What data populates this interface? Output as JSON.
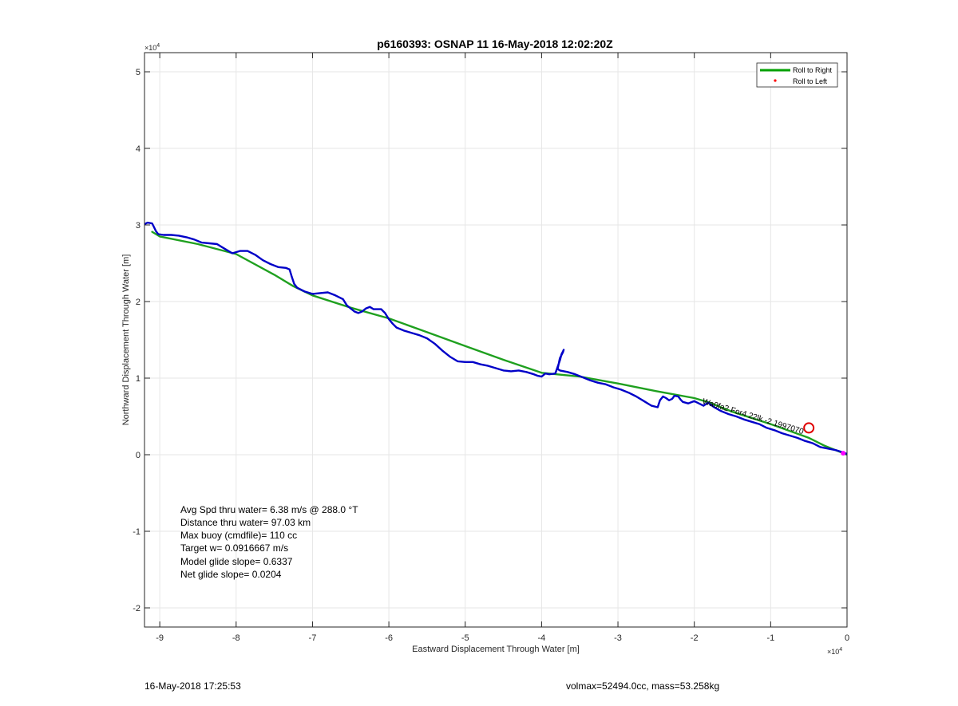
{
  "chart_data": {
    "type": "line",
    "title": "p6160393: OSNAP 11 16-May-2018 12:02:20Z",
    "xlabel": "Eastward Displacement Through Water [m]",
    "ylabel": "Northward Displacement Through Water [m]",
    "xlim": [
      -92000,
      0
    ],
    "ylim": [
      -22500,
      52500
    ],
    "x_ticks": [
      -90000,
      -80000,
      -70000,
      -60000,
      -50000,
      -40000,
      -30000,
      -20000,
      -10000,
      0
    ],
    "x_tick_labels": [
      "-9",
      "-8",
      "-7",
      "-6",
      "-5",
      "-4",
      "-3",
      "-2",
      "-1",
      "0"
    ],
    "y_ticks": [
      -20000,
      -10000,
      0,
      10000,
      20000,
      30000,
      40000,
      50000
    ],
    "y_tick_labels": [
      "-2",
      "-1",
      "0",
      "1",
      "2",
      "3",
      "4",
      "5"
    ],
    "axis_multiplier": {
      "base": "×10",
      "exp": "4"
    },
    "grid": true,
    "legend_position": "top-right",
    "legend": [
      {
        "name": "Roll to Right",
        "color": "#00a000",
        "marker": "line"
      },
      {
        "name": "Roll to Left",
        "color": "#ff0000",
        "marker": "dot"
      }
    ],
    "series": [
      {
        "name": "Roll to Right",
        "color": "#1fa01f",
        "x": [
          -91000,
          -90000,
          -85000,
          -80000,
          -75000,
          -72500,
          -70000,
          -65000,
          -60000,
          -55000,
          -50000,
          -45000,
          -40000,
          -35000,
          -30000,
          -25000,
          -20000,
          -18000,
          -15000,
          -10000,
          -5000,
          -3000,
          0
        ],
        "y": [
          29100,
          28500,
          27500,
          26200,
          23500,
          22000,
          20800,
          19200,
          17800,
          16000,
          14200,
          12400,
          10700,
          10200,
          9300,
          8300,
          7400,
          6800,
          5600,
          4000,
          2200,
          1200,
          0
        ]
      },
      {
        "name": "track",
        "color": "#0000c8",
        "x": [
          -92000,
          -91600,
          -91000,
          -90800,
          -90500,
          -90200,
          -89500,
          -88500,
          -87500,
          -86500,
          -85500,
          -84500,
          -83500,
          -82500,
          -81500,
          -80500,
          -79500,
          -78500,
          -77500,
          -76500,
          -75500,
          -74500,
          -73500,
          -73000,
          -72700,
          -72400,
          -72000,
          -71000,
          -70000,
          -69000,
          -68000,
          -67000,
          -66000,
          -65500,
          -64500,
          -64000,
          -63500,
          -63000,
          -62500,
          -62000,
          -61000,
          -60500,
          -60000,
          -59500,
          -59000,
          -58000,
          -57000,
          -56000,
          -55000,
          -54000,
          -53000,
          -52000,
          -51000,
          -50000,
          -49000,
          -48000,
          -47000,
          -46000,
          -45000,
          -44000,
          -43000,
          -42000,
          -41000,
          -40500,
          -40000,
          -39500,
          -39000,
          -38200,
          -37600,
          -37400,
          -37200,
          -37100,
          -37200,
          -37600,
          -37900,
          -37600,
          -36600,
          -35600,
          -34600,
          -33600,
          -32600,
          -31600,
          -30600,
          -29600,
          -28600,
          -27600,
          -26600,
          -25600,
          -24800,
          -24500,
          -24100,
          -23700,
          -23300,
          -22900,
          -22600,
          -22100,
          -21800,
          -21500,
          -20800,
          -20000,
          -19400,
          -18800,
          -18200,
          -17400,
          -16500,
          -15500,
          -14500,
          -13500,
          -12500,
          -11500,
          -10500,
          -9500,
          -8500,
          -7500,
          -6500,
          -5500,
          -4500,
          -3500,
          -2500,
          -1500,
          -500,
          0
        ],
        "y": [
          30100,
          30300,
          30200,
          29800,
          29200,
          28800,
          28700,
          28700,
          28600,
          28400,
          28100,
          27700,
          27600,
          27500,
          26900,
          26300,
          26600,
          26600,
          26100,
          25400,
          24900,
          24500,
          24400,
          24200,
          23200,
          22300,
          21800,
          21300,
          21000,
          21100,
          21200,
          20800,
          20300,
          19500,
          18700,
          18500,
          18700,
          19100,
          19300,
          19000,
          19000,
          18500,
          17700,
          17100,
          16600,
          16200,
          15900,
          15600,
          15200,
          14500,
          13600,
          12800,
          12200,
          12100,
          12100,
          11800,
          11600,
          11300,
          11000,
          10900,
          11000,
          10800,
          10500,
          10300,
          10200,
          10600,
          10500,
          10600,
          12300,
          13100,
          13500,
          13700,
          13400,
          12600,
          11200,
          11000,
          10800,
          10500,
          10100,
          9700,
          9400,
          9200,
          8800,
          8500,
          8100,
          7600,
          7000,
          6400,
          6200,
          7100,
          7600,
          7400,
          7100,
          7300,
          7700,
          7600,
          7200,
          6900,
          6700,
          7000,
          6700,
          6400,
          6800,
          6200,
          5700,
          5300,
          5000,
          4600,
          4300,
          4000,
          3500,
          3200,
          2800,
          2500,
          2200,
          1800,
          1500,
          1000,
          800,
          600,
          300,
          100
        ]
      }
    ],
    "markers": [
      {
        "name": "target-circle",
        "x": -5000,
        "y": 3500,
        "color": "#e00000"
      },
      {
        "name": "end-marker",
        "x": -500,
        "y": 200,
        "color": "#ff00ff"
      }
    ],
    "waypoint_label": {
      "text": "Wa0fa2 For4 22lk -2 1997070",
      "x": -19000,
      "y": 6700
    },
    "stats": [
      "Avg Spd thru water=  6.38 m/s @ 288.0 °T",
      "Distance thru water= 97.03 km",
      "Max buoy (cmdfile)= 110 cc",
      "Target w= 0.0916667 m/s",
      "Model glide slope= 0.6337",
      "Net glide slope= 0.0204"
    ],
    "footer_left": "16-May-2018 17:25:53",
    "footer_right": "volmax=52494.0cc, mass=53.258kg"
  }
}
